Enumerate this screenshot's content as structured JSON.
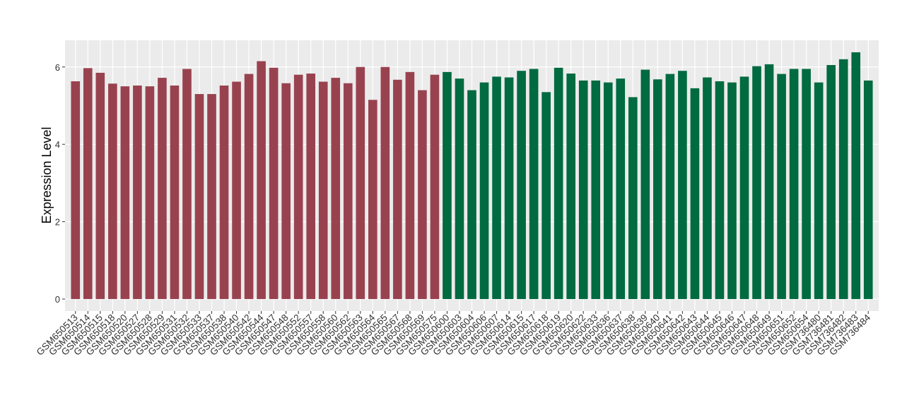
{
  "chart_data": {
    "type": "bar",
    "y_label": "Expression Level",
    "categories": [
      "GSM650513",
      "GSM650514",
      "GSM650515",
      "GSM650518",
      "GSM650520",
      "GSM650527",
      "GSM650528",
      "GSM650529",
      "GSM650531",
      "GSM650532",
      "GSM650533",
      "GSM650537",
      "GSM650538",
      "GSM650540",
      "GSM650542",
      "GSM650544",
      "GSM650547",
      "GSM650548",
      "GSM650552",
      "GSM650557",
      "GSM650558",
      "GSM650560",
      "GSM650562",
      "GSM650563",
      "GSM650564",
      "GSM650565",
      "GSM650567",
      "GSM650568",
      "GSM650569",
      "GSM650575",
      "GSM650600",
      "GSM650603",
      "GSM650604",
      "GSM650606",
      "GSM650607",
      "GSM650614",
      "GSM650615",
      "GSM650617",
      "GSM650618",
      "GSM650619",
      "GSM650620",
      "GSM650622",
      "GSM650633",
      "GSM650636",
      "GSM650637",
      "GSM650638",
      "GSM650639",
      "GSM650640",
      "GSM650641",
      "GSM650642",
      "GSM650643",
      "GSM650644",
      "GSM650645",
      "GSM650646",
      "GSM650647",
      "GSM650648",
      "GSM650649",
      "GSM650651",
      "GSM650652",
      "GSM650654",
      "GSM736480",
      "GSM736481",
      "GSM736482",
      "GSM736483",
      "GSM736484"
    ],
    "values": [
      5.63,
      5.97,
      5.85,
      5.57,
      5.5,
      5.52,
      5.5,
      5.72,
      5.52,
      5.95,
      5.3,
      5.3,
      5.52,
      5.62,
      5.82,
      6.15,
      5.98,
      5.58,
      5.8,
      5.83,
      5.62,
      5.72,
      5.58,
      6.0,
      5.15,
      6.0,
      5.67,
      5.87,
      5.4,
      5.8,
      5.87,
      5.7,
      5.4,
      5.6,
      5.75,
      5.73,
      5.9,
      5.95,
      5.35,
      5.98,
      5.83,
      5.65,
      5.65,
      5.6,
      5.7,
      5.22,
      5.93,
      5.68,
      5.82,
      5.9,
      5.45,
      5.73,
      5.63,
      5.6,
      5.75,
      6.02,
      6.07,
      5.82,
      5.95,
      5.95,
      5.6,
      6.05,
      6.2,
      6.38,
      5.65
    ],
    "colors": [
      "#99424f",
      "#99424f",
      "#99424f",
      "#99424f",
      "#99424f",
      "#99424f",
      "#99424f",
      "#99424f",
      "#99424f",
      "#99424f",
      "#99424f",
      "#99424f",
      "#99424f",
      "#99424f",
      "#99424f",
      "#99424f",
      "#99424f",
      "#99424f",
      "#99424f",
      "#99424f",
      "#99424f",
      "#99424f",
      "#99424f",
      "#99424f",
      "#99424f",
      "#99424f",
      "#99424f",
      "#99424f",
      "#99424f",
      "#99424f",
      "#006a40",
      "#006a40",
      "#006a40",
      "#006a40",
      "#006a40",
      "#006a40",
      "#006a40",
      "#006a40",
      "#006a40",
      "#006a40",
      "#006a40",
      "#006a40",
      "#006a40",
      "#006a40",
      "#006a40",
      "#006a40",
      "#006a40",
      "#006a40",
      "#006a40",
      "#006a40",
      "#006a40",
      "#006a40",
      "#006a40",
      "#006a40",
      "#006a40",
      "#006a40",
      "#006a40",
      "#006a40",
      "#006a40",
      "#006a40",
      "#006a40",
      "#006a40",
      "#006a40",
      "#006a40",
      "#006a40"
    ],
    "ylim": [
      -0.31,
      6.69
    ],
    "yticks": [
      0,
      2,
      4,
      6
    ],
    "grid": true
  }
}
